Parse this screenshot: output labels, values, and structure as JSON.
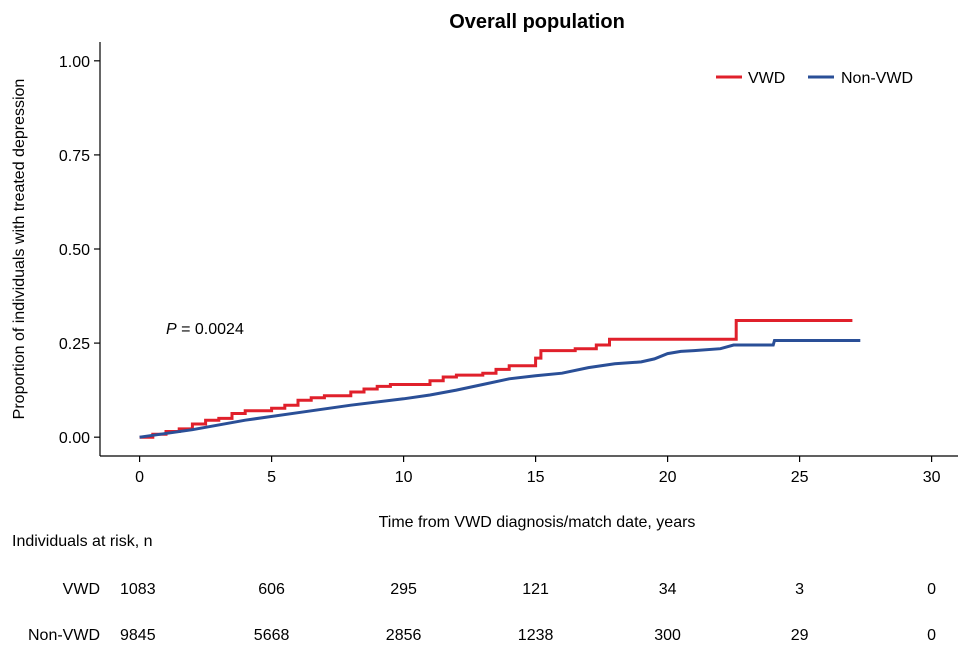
{
  "chart_data": {
    "type": "line",
    "title": "Overall population",
    "xlabel": "Time from VWD diagnosis/match date, years",
    "ylabel": "Proportion of individuals with treated depression",
    "xlim": [
      -1.5,
      31
    ],
    "ylim": [
      -0.05,
      1.05
    ],
    "xticks": [
      0,
      5,
      10,
      15,
      20,
      25,
      30
    ],
    "yticks": [
      0.0,
      0.25,
      0.5,
      0.75,
      1.0
    ],
    "xtick_labels": [
      "0",
      "5",
      "10",
      "15",
      "20",
      "25",
      "30"
    ],
    "ytick_labels": [
      "0.00",
      "0.25",
      "0.50",
      "0.75",
      "1.00"
    ],
    "grid": false,
    "legend": "top-right",
    "annotation": {
      "prefix": "P",
      "text": " = 0.0024",
      "x": 1.0,
      "y": 0.29
    },
    "series": [
      {
        "name": "VWD",
        "color": "#e0202b",
        "step": true,
        "points": [
          [
            0,
            0.0
          ],
          [
            0.5,
            0.008
          ],
          [
            1,
            0.015
          ],
          [
            1.5,
            0.022
          ],
          [
            2,
            0.035
          ],
          [
            2.5,
            0.045
          ],
          [
            3,
            0.05
          ],
          [
            3.5,
            0.063
          ],
          [
            4,
            0.07
          ],
          [
            5,
            0.077
          ],
          [
            5.5,
            0.085
          ],
          [
            6,
            0.098
          ],
          [
            6.5,
            0.105
          ],
          [
            7,
            0.11
          ],
          [
            8,
            0.12
          ],
          [
            8.5,
            0.128
          ],
          [
            9,
            0.135
          ],
          [
            9.5,
            0.14
          ],
          [
            11,
            0.15
          ],
          [
            11.5,
            0.16
          ],
          [
            12,
            0.165
          ],
          [
            13,
            0.17
          ],
          [
            13.5,
            0.18
          ],
          [
            14,
            0.19
          ],
          [
            15,
            0.21
          ],
          [
            15.2,
            0.23
          ],
          [
            16.5,
            0.235
          ],
          [
            17.3,
            0.245
          ],
          [
            17.8,
            0.26
          ],
          [
            22.6,
            0.31
          ],
          [
            27,
            0.31
          ]
        ]
      },
      {
        "name": "Non-VWD",
        "color": "#2a4f97",
        "step": false,
        "points": [
          [
            0,
            0.0
          ],
          [
            2,
            0.02
          ],
          [
            4,
            0.045
          ],
          [
            6,
            0.065
          ],
          [
            8,
            0.085
          ],
          [
            10,
            0.102
          ],
          [
            11,
            0.112
          ],
          [
            12,
            0.125
          ],
          [
            13,
            0.14
          ],
          [
            14,
            0.155
          ],
          [
            15,
            0.163
          ],
          [
            16,
            0.17
          ],
          [
            17,
            0.185
          ],
          [
            18,
            0.195
          ],
          [
            19,
            0.2
          ],
          [
            19.5,
            0.208
          ],
          [
            20,
            0.222
          ],
          [
            20.5,
            0.228
          ],
          [
            21,
            0.23
          ],
          [
            22,
            0.235
          ],
          [
            22.5,
            0.245
          ],
          [
            24,
            0.245
          ],
          [
            24.05,
            0.257
          ],
          [
            27.3,
            0.257
          ]
        ]
      }
    ],
    "risk_table": {
      "heading": "Individuals at risk, n",
      "times": [
        0,
        5,
        10,
        15,
        20,
        25,
        30
      ],
      "rows": [
        {
          "label": "VWD",
          "values": [
            "1083",
            "606",
            "295",
            "121",
            "34",
            "3",
            "0"
          ]
        },
        {
          "label": "Non-VWD",
          "values": [
            "9845",
            "5668",
            "2856",
            "1238",
            "300",
            "29",
            "0"
          ]
        }
      ]
    }
  }
}
